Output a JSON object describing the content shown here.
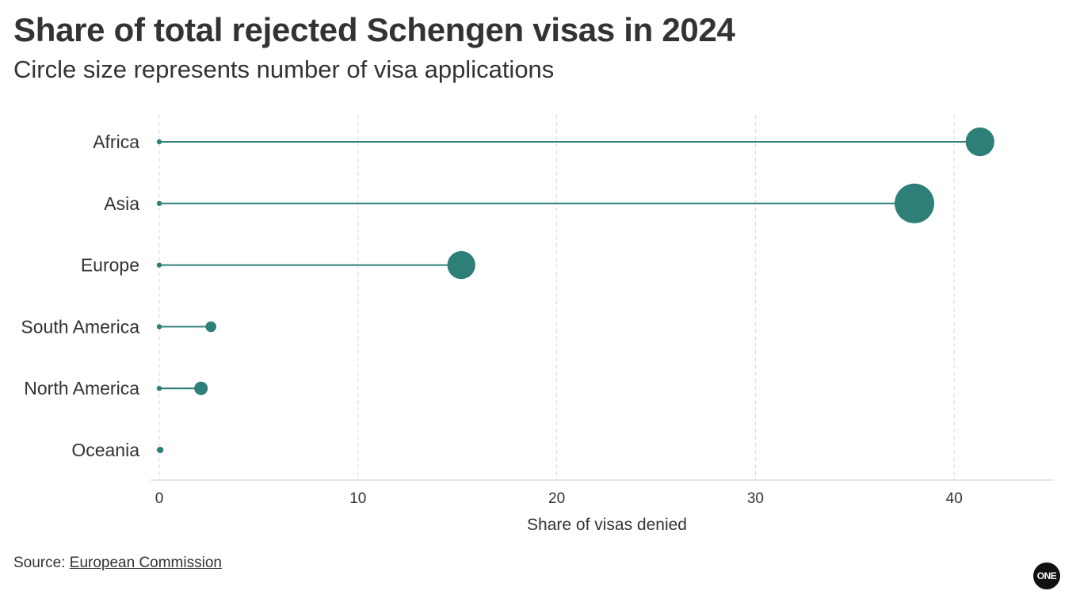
{
  "title": "Share of total rejected Schengen visas in 2024",
  "subtitle": "Circle size represents number of visa applications",
  "source": {
    "prefix": "Source: ",
    "link_text": "European Commission"
  },
  "logo_text": "ONE",
  "colors": {
    "accent": "#2d7f78",
    "grid": "#d9d9d9",
    "axis": "#cccccc",
    "text": "#333333"
  },
  "chart_data": {
    "type": "lollipop",
    "categories": [
      "Africa",
      "Asia",
      "Europe",
      "South America",
      "North America",
      "Oceania"
    ],
    "values": [
      41.3,
      38.0,
      15.2,
      2.6,
      2.1,
      0.05
    ],
    "bubble_size_note": "Circle size represents number of visa applications",
    "relative_sizes": [
      1.0,
      1.9,
      0.95,
      0.14,
      0.22,
      0.05
    ],
    "xlabel": "Share of visas denied",
    "xlim": [
      -0.5,
      45
    ],
    "xticks": [
      0,
      10,
      20,
      30,
      40
    ],
    "grid": "vertical-dashed"
  }
}
